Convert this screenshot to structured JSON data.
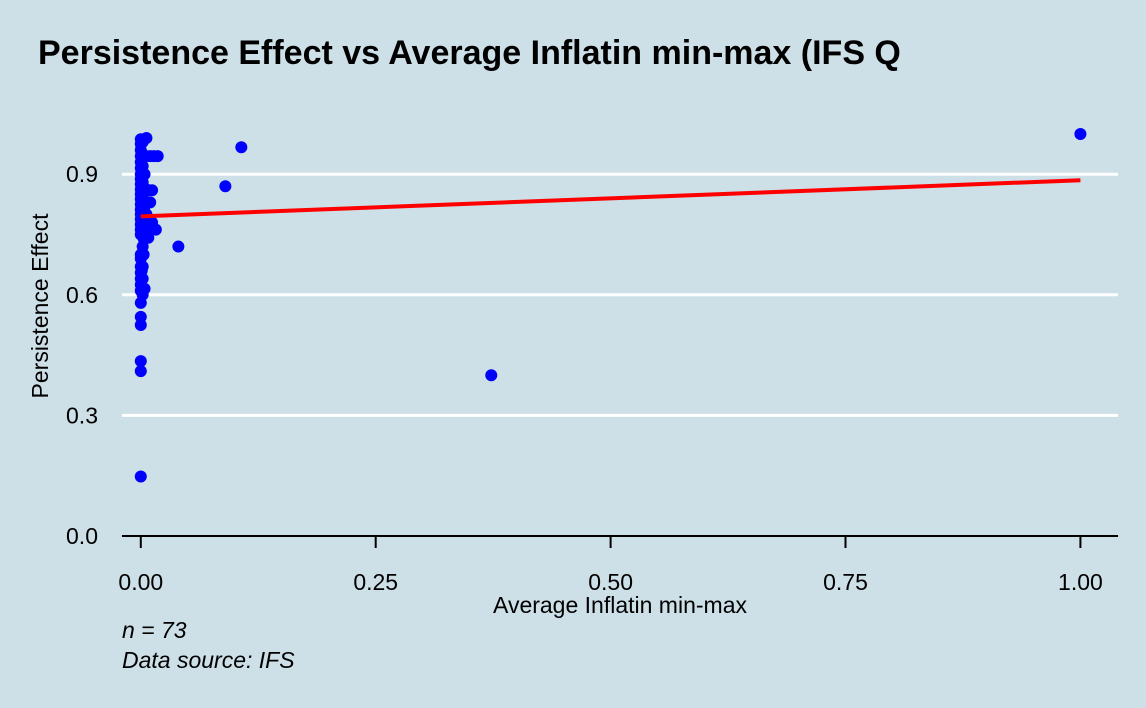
{
  "chart_data": {
    "type": "scatter",
    "title": "Persistence Effect vs Average Inflatin min-max (IFS Q",
    "xlabel": "Average Inflatin min-max",
    "ylabel": "Persistence Effect",
    "xlim": [
      -0.02,
      1.04
    ],
    "ylim": [
      0,
      1.0
    ],
    "x_ticks": [
      "0.00",
      "0.25",
      "0.50",
      "0.75",
      "1.00"
    ],
    "y_ticks": [
      "0.0",
      "0.3",
      "0.6",
      "0.9"
    ],
    "grid": "horizontal",
    "point_color": "#0000ff",
    "line_color": "#ff0000",
    "background": "#cddfe7",
    "points": [
      [
        0.0,
        0.987
      ],
      [
        0.0,
        0.975
      ],
      [
        0.0,
        0.96
      ],
      [
        0.0,
        0.945
      ],
      [
        0.0,
        0.93
      ],
      [
        0.0,
        0.915
      ],
      [
        0.0,
        0.9
      ],
      [
        0.0,
        0.888
      ],
      [
        0.0,
        0.875
      ],
      [
        0.0,
        0.862
      ],
      [
        0.0,
        0.85
      ],
      [
        0.0,
        0.838
      ],
      [
        0.0,
        0.825
      ],
      [
        0.0,
        0.812
      ],
      [
        0.0,
        0.8
      ],
      [
        0.0,
        0.788
      ],
      [
        0.0,
        0.775
      ],
      [
        0.0,
        0.762
      ],
      [
        0.0,
        0.75
      ],
      [
        0.0,
        0.7
      ],
      [
        0.0,
        0.69
      ],
      [
        0.0,
        0.67
      ],
      [
        0.0,
        0.655
      ],
      [
        0.0,
        0.64
      ],
      [
        0.0,
        0.625
      ],
      [
        0.0,
        0.61
      ],
      [
        0.0,
        0.58
      ],
      [
        0.0,
        0.545
      ],
      [
        0.0,
        0.525
      ],
      [
        0.0,
        0.435
      ],
      [
        0.0,
        0.41
      ],
      [
        0.0,
        0.148
      ],
      [
        0.002,
        0.98
      ],
      [
        0.002,
        0.92
      ],
      [
        0.002,
        0.88
      ],
      [
        0.002,
        0.84
      ],
      [
        0.002,
        0.8
      ],
      [
        0.002,
        0.76
      ],
      [
        0.002,
        0.72
      ],
      [
        0.002,
        0.67
      ],
      [
        0.002,
        0.64
      ],
      [
        0.002,
        0.6
      ],
      [
        0.004,
        0.945
      ],
      [
        0.004,
        0.9
      ],
      [
        0.004,
        0.865
      ],
      [
        0.004,
        0.82
      ],
      [
        0.004,
        0.79
      ],
      [
        0.004,
        0.615
      ],
      [
        0.006,
        0.99
      ],
      [
        0.006,
        0.945
      ],
      [
        0.006,
        0.862
      ],
      [
        0.006,
        0.8
      ],
      [
        0.008,
        0.86
      ],
      [
        0.008,
        0.83
      ],
      [
        0.008,
        0.77
      ],
      [
        0.008,
        0.742
      ],
      [
        0.01,
        0.945
      ],
      [
        0.01,
        0.83
      ],
      [
        0.012,
        0.78
      ],
      [
        0.012,
        0.86
      ],
      [
        0.014,
        0.945
      ],
      [
        0.016,
        0.762
      ],
      [
        0.018,
        0.945
      ],
      [
        0.04,
        0.72
      ],
      [
        0.09,
        0.87
      ],
      [
        0.107,
        0.967
      ],
      [
        0.373,
        0.4
      ],
      [
        1.0,
        1.0
      ],
      [
        0.003,
        0.7
      ],
      [
        0.001,
        0.66
      ],
      [
        0.005,
        0.83
      ],
      [
        0.003,
        0.74
      ],
      [
        0.001,
        0.81
      ]
    ],
    "fit_line": {
      "x": [
        0.0,
        1.0
      ],
      "y": [
        0.795,
        0.885
      ]
    },
    "caption_lines": [
      "n = 73",
      "Data source: IFS"
    ]
  }
}
